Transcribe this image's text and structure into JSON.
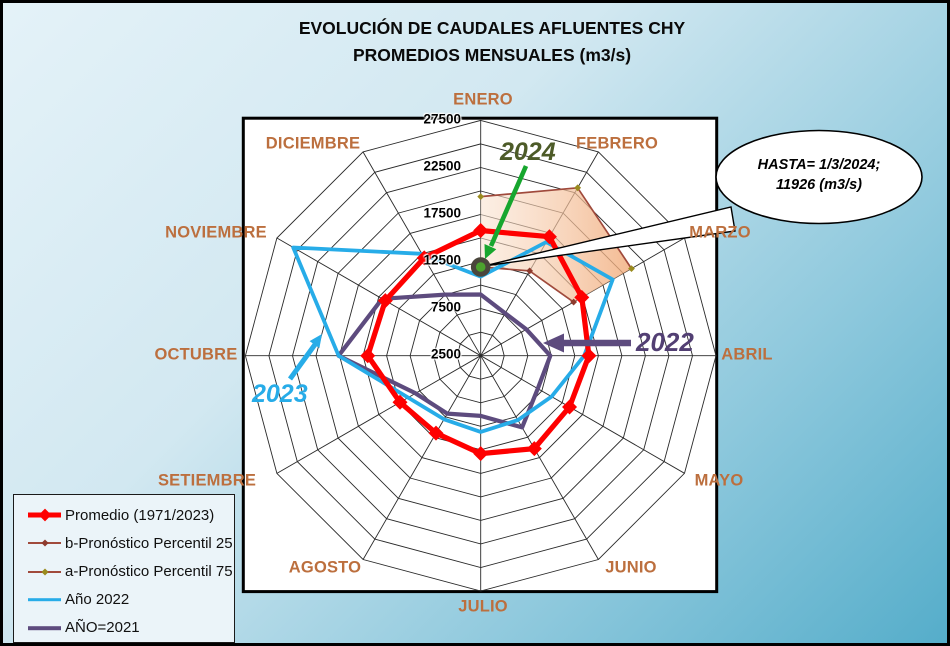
{
  "title": {
    "line1": "EVOLUCIÓN DE CAUDALES AFLUENTES CHY",
    "line2": "PROMEDIOS MENSUALES (m3/s)"
  },
  "callout": {
    "line1": "HASTA= 1/3/2024;",
    "line2": "11926 (m3/s)"
  },
  "annotations": {
    "y2024": {
      "text": "2024",
      "color": "#4d5b28"
    },
    "y2022": {
      "text": "2022",
      "color": "#523f73"
    },
    "y2023": {
      "text": "2023",
      "color": "#27ace8"
    }
  },
  "legend": {
    "items": [
      {
        "label": "Promedio (1971/2023)",
        "swatch": "promedio"
      },
      {
        "label": "b-Pronóstico Percentil 25",
        "swatch": "p25"
      },
      {
        "label": "a-Pronóstico Percentil 75",
        "swatch": "p75"
      },
      {
        "label": "Año 2022",
        "swatch": "y2022"
      },
      {
        "label": "AÑO=2021",
        "swatch": "y2021"
      }
    ]
  },
  "colors": {
    "background_top": "#e4f2f8",
    "background_bottom": "#55adca",
    "plot_background": "#ffffff",
    "grid": "#2a2a2a",
    "promedio_red": "#fe0000",
    "percentil_line": "#a04a3c",
    "percentil25_marker": "#8e3b2e",
    "percentil75_marker": "#9a8b1e",
    "cyan_2022": "#27ace8",
    "purple_2021": "#5d4b7e",
    "band_fill_light": "#f9e2cf",
    "band_fill_dark": "#f1aa78",
    "marker_2024_fill": "#4ca32e",
    "marker_2024_ring": "#4a463c",
    "green_arrow": "#17a62e",
    "month_label": "#bc6f3e"
  },
  "chart_data": {
    "type": "radar",
    "title": "EVOLUCIÓN DE CAUDALES AFLUENTES CHY — PROMEDIOS MENSUALES (m3/s)",
    "categories": [
      "ENERO",
      "FEBRERO",
      "MARZO",
      "ABRIL",
      "MAYO",
      "JUNIO",
      "JULIO",
      "AGOSTO",
      "SETIEMBRE",
      "OCTUBRE",
      "NOVIEMBRE",
      "DICIEMBRE"
    ],
    "radial_axis": {
      "min": 2500,
      "max": 27500,
      "grid_step": 2500,
      "tick_labels": [
        2500,
        7500,
        12500,
        17500,
        22500,
        27500
      ]
    },
    "series": [
      {
        "name": "Promedio (1971/2023)",
        "color": "#fe0000",
        "width": 5.2,
        "closed": true,
        "marker": "diamond",
        "marker_size": 7.5,
        "marker_color": "#fe0000",
        "values": [
          15800,
          17100,
          14900,
          14000,
          13400,
          13900,
          12900,
          12000,
          12400,
          14500,
          14200,
          14500
        ]
      },
      {
        "name": "b-Pronóstico Percentil 25",
        "color": "#a04a3c",
        "width": 1.7,
        "closed": false,
        "marker": "diamond",
        "marker_size": 3.4,
        "marker_color": "#8e3b2e",
        "values": [
          11926,
          12900,
          13900,
          null,
          null,
          null,
          null,
          null,
          null,
          null,
          null,
          null
        ]
      },
      {
        "name": "a-Pronóstico Percentil 75",
        "color": "#a04a3c",
        "width": 1.7,
        "closed": false,
        "marker": "diamond",
        "marker_size": 3.4,
        "marker_color": "#9a8b1e",
        "values": [
          19400,
          23100,
          21000,
          null,
          null,
          null,
          null,
          null,
          null,
          null,
          null,
          null
        ]
      },
      {
        "name": "Año 2022",
        "color": "#27ace8",
        "width": 3.8,
        "closed": true,
        "marker": "none",
        "marker_size": 0,
        "marker_color": "none",
        "values": [
          10900,
          16450,
          18700,
          13500,
          11200,
          10400,
          10600,
          10300,
          11400,
          17600,
          25500,
          15000
        ]
      },
      {
        "name": "AÑO=2021",
        "color": "#5d4b7e",
        "width": 4.2,
        "closed": true,
        "marker": "none",
        "marker_size": 0,
        "marker_color": "none",
        "values": [
          9000,
          7700,
          8100,
          9900,
          9500,
          11300,
          8900,
          9600,
          10500,
          17600,
          14600,
          10000
        ]
      }
    ],
    "forecast_band": {
      "upper_series": "a-Pronóstico Percentil 75",
      "lower_series": "b-Pronóstico Percentil 25",
      "months": [
        "ENERO",
        "FEBRERO",
        "MARZO"
      ]
    },
    "point_2024": {
      "category": "ENERO",
      "value": 11926
    }
  }
}
